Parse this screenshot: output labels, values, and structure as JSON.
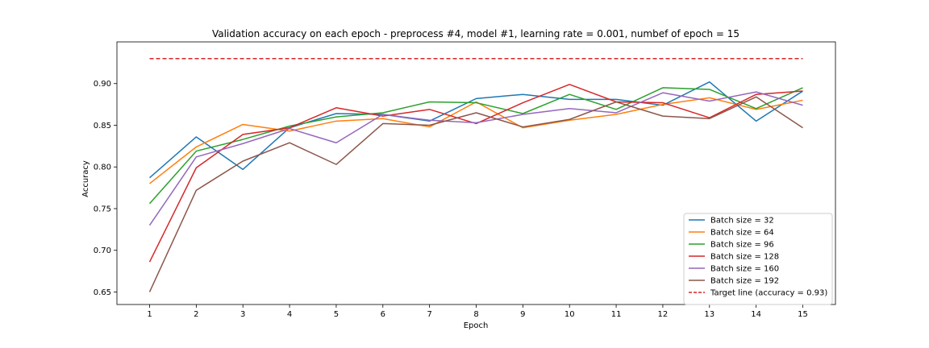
{
  "chart_data": {
    "type": "line",
    "title": "Validation accuracy on each epoch - preprocess #4, model #1, learning rate = 0.001, numbef of epoch = 15",
    "xlabel": "Epoch",
    "ylabel": "Accuracy",
    "x": [
      1,
      2,
      3,
      4,
      5,
      6,
      7,
      8,
      9,
      10,
      11,
      12,
      13,
      14,
      15
    ],
    "xticks": [
      "1",
      "2",
      "3",
      "4",
      "5",
      "6",
      "7",
      "8",
      "9",
      "10",
      "11",
      "12",
      "13",
      "14",
      "15"
    ],
    "yticks": [
      "0.65",
      "0.70",
      "0.75",
      "0.80",
      "0.85",
      "0.90"
    ],
    "ytick_values": [
      0.65,
      0.7,
      0.75,
      0.8,
      0.85,
      0.9
    ],
    "xlim": [
      0.3,
      15.7
    ],
    "ylim": [
      0.635,
      0.95
    ],
    "grid": false,
    "legend_position": "lower-right",
    "series": [
      {
        "name": "Batch size = 32",
        "color": "#1f77b4",
        "values": [
          0.787,
          0.836,
          0.797,
          0.847,
          0.864,
          0.863,
          0.855,
          0.882,
          0.887,
          0.881,
          0.881,
          0.874,
          0.902,
          0.855,
          0.891
        ]
      },
      {
        "name": "Batch size = 64",
        "color": "#ff7f0e",
        "values": [
          0.78,
          0.824,
          0.851,
          0.843,
          0.855,
          0.858,
          0.848,
          0.878,
          0.847,
          0.856,
          0.863,
          0.875,
          0.883,
          0.869,
          0.88
        ]
      },
      {
        "name": "Batch size = 96",
        "color": "#2ca02c",
        "values": [
          0.756,
          0.819,
          0.833,
          0.849,
          0.86,
          0.865,
          0.878,
          0.877,
          0.864,
          0.887,
          0.869,
          0.895,
          0.893,
          0.87,
          0.895
        ]
      },
      {
        "name": "Batch size = 128",
        "color": "#d62728",
        "values": [
          0.686,
          0.799,
          0.839,
          0.847,
          0.871,
          0.861,
          0.869,
          0.852,
          0.877,
          0.899,
          0.878,
          0.877,
          0.859,
          0.887,
          0.891
        ]
      },
      {
        "name": "Batch size = 160",
        "color": "#9467bd",
        "values": [
          0.73,
          0.812,
          0.828,
          0.846,
          0.829,
          0.863,
          0.856,
          0.853,
          0.863,
          0.87,
          0.865,
          0.889,
          0.879,
          0.89,
          0.874
        ]
      },
      {
        "name": "Batch size = 192",
        "color": "#8c564b",
        "values": [
          0.65,
          0.772,
          0.807,
          0.829,
          0.803,
          0.852,
          0.85,
          0.865,
          0.848,
          0.857,
          0.878,
          0.861,
          0.858,
          0.884,
          0.847
        ]
      }
    ],
    "target_line": {
      "name": "Target line (accuracy = 0.93)",
      "color": "#d62728",
      "value": 0.93,
      "style": "dashed"
    }
  }
}
